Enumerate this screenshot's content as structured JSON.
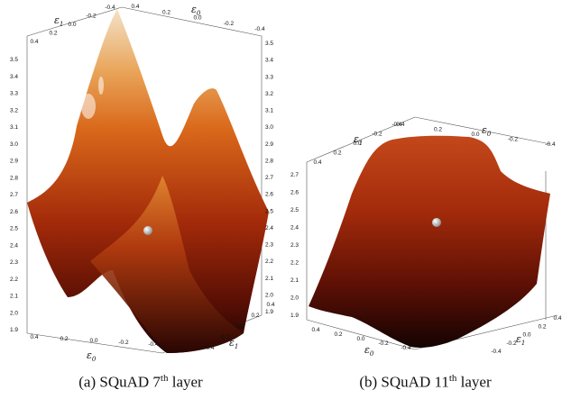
{
  "panels": [
    {
      "caption": {
        "prefix": "(a) SQuAD 7",
        "sup": "th",
        "suffix": " layer"
      },
      "axes": {
        "e1": {
          "symbol": "ε",
          "sub": "1"
        },
        "e0": {
          "symbol": "ε",
          "sub": "0"
        }
      },
      "z_ticks": [
        "3.5",
        "3.4",
        "3.3",
        "3.2",
        "3.1",
        "3.0",
        "2.9",
        "2.8",
        "2.7",
        "2.6",
        "2.5",
        "2.4",
        "2.3",
        "2.2",
        "2.1",
        "2.0",
        "1.9"
      ],
      "top_left_ticks": [
        "0.4",
        "0.2",
        "0.0",
        "-0.2",
        "-0.4"
      ],
      "top_right_ticks": [
        "0.4",
        "0.2",
        "0.0",
        "-0.2",
        "-0.4"
      ],
      "bottom_left_ticks": [
        "0.4",
        "0.2",
        "0.0",
        "-0.2",
        "-0.4"
      ],
      "bottom_right_ticks": [
        "-0.4",
        "-0.2",
        "0.0",
        "0.2",
        "0.4"
      ]
    },
    {
      "caption": {
        "prefix": "(b) SQuAD 11",
        "sup": "th",
        "suffix": " layer"
      },
      "axes": {
        "e1": {
          "symbol": "ε",
          "sub": "1"
        },
        "e0": {
          "symbol": "ε",
          "sub": "0"
        }
      },
      "z_ticks": [
        "2.7",
        "2.6",
        "2.5",
        "2.4",
        "2.3",
        "2.2",
        "2.1",
        "2.0",
        "1.9"
      ],
      "top_left_ticks": [
        "0.4",
        "0.2",
        "0.0",
        "-0.2",
        "-0.4"
      ],
      "top_right_ticks": [
        "0.4",
        "0.2",
        "0.0",
        "-0.2",
        "-0.4"
      ],
      "bottom_left_ticks": [
        "0.4",
        "0.2",
        "0.0",
        "-0.2",
        "-0.4"
      ],
      "bottom_right_ticks": [
        "-0.4",
        "-0.2",
        "0.0",
        "0.2",
        "0.4"
      ]
    }
  ],
  "colors": {
    "surface_top": "#f4e2c8",
    "surface_mid": "#e0701c",
    "surface_low": "#8a1a08",
    "surface_dark": "#1a0402"
  }
}
